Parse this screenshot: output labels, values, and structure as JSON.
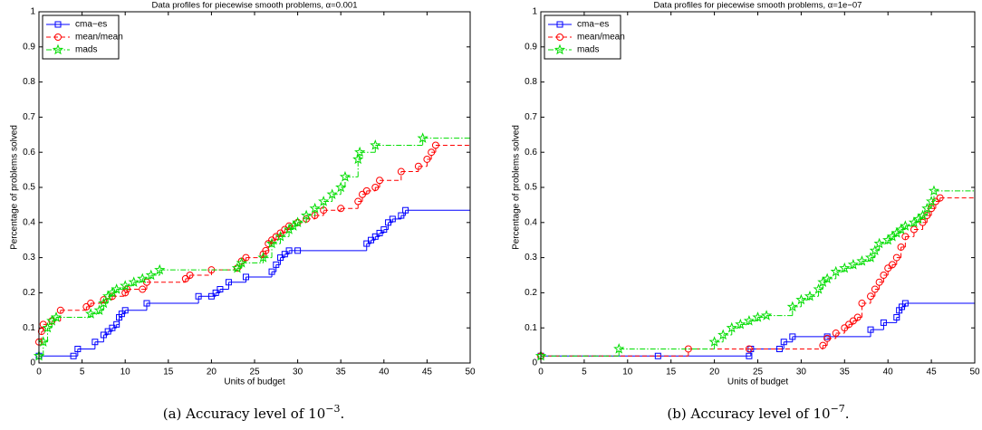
{
  "chart_data": [
    {
      "type": "step",
      "title": "Data profiles for piecewise smooth problems, α=0.001",
      "xlabel": "Units of budget",
      "ylabel": "Percentage of problems solved",
      "caption": {
        "prefix": "(a) Accuracy level of 10",
        "exponent": "−3",
        "suffix": "."
      },
      "xlim": [
        0,
        50
      ],
      "ylim": [
        0,
        1
      ],
      "xticks": [
        0,
        5,
        10,
        15,
        20,
        25,
        30,
        35,
        40,
        45,
        50
      ],
      "yticks": [
        0,
        0.1,
        0.2,
        0.3,
        0.4,
        0.5,
        0.6,
        0.7,
        0.8,
        0.9,
        1
      ],
      "legend": "upper left",
      "series": [
        {
          "name": "cma−es",
          "color": "#0000ff",
          "marker": "square",
          "linestyle": "solid",
          "x": [
            0,
            4,
            4.5,
            6.5,
            7.5,
            8,
            8.5,
            9,
            9.3,
            9.6,
            10,
            12.5,
            18.5,
            20,
            20.5,
            21,
            22,
            24,
            27,
            27.5,
            28,
            28.5,
            29,
            30,
            38,
            38.5,
            39,
            39.5,
            40,
            40.5,
            41,
            42,
            42.5
          ],
          "values": [
            0.02,
            0.02,
            0.04,
            0.06,
            0.08,
            0.09,
            0.1,
            0.11,
            0.13,
            0.14,
            0.15,
            0.17,
            0.19,
            0.19,
            0.2,
            0.21,
            0.23,
            0.245,
            0.26,
            0.28,
            0.3,
            0.31,
            0.32,
            0.32,
            0.34,
            0.35,
            0.36,
            0.37,
            0.38,
            0.4,
            0.41,
            0.42,
            0.435
          ]
        },
        {
          "name": "mean/mean",
          "color": "#ff0000",
          "marker": "circle",
          "linestyle": "dashed",
          "x": [
            0,
            0.3,
            0.5,
            1.5,
            2.5,
            5.5,
            6,
            7.5,
            8.5,
            10,
            10.2,
            12,
            12.5,
            17,
            17.5,
            20,
            23,
            23.5,
            24,
            26,
            26.3,
            26.6,
            27,
            27.5,
            28,
            28.5,
            29,
            30,
            31,
            32,
            33,
            35,
            37,
            37.5,
            38,
            39,
            39.5,
            42,
            44,
            45,
            45.5,
            46
          ],
          "values": [
            0.06,
            0.09,
            0.11,
            0.12,
            0.15,
            0.16,
            0.17,
            0.18,
            0.19,
            0.2,
            0.21,
            0.21,
            0.23,
            0.24,
            0.25,
            0.265,
            0.27,
            0.29,
            0.3,
            0.31,
            0.32,
            0.34,
            0.35,
            0.36,
            0.37,
            0.38,
            0.39,
            0.4,
            0.41,
            0.42,
            0.435,
            0.44,
            0.46,
            0.48,
            0.49,
            0.5,
            0.52,
            0.545,
            0.56,
            0.58,
            0.6,
            0.62
          ]
        },
        {
          "name": "mads",
          "color": "#00dd00",
          "marker": "star",
          "linestyle": "dashdot",
          "x": [
            0,
            0.5,
            1,
            1.5,
            2,
            6,
            7,
            7.5,
            8,
            8.5,
            9,
            10,
            11,
            12,
            13,
            14,
            23,
            23.5,
            26,
            27,
            28,
            29,
            29.5,
            30,
            31,
            32,
            33,
            34,
            35,
            35.5,
            37,
            37.2,
            39,
            44.5
          ],
          "values": [
            0.02,
            0.06,
            0.1,
            0.12,
            0.13,
            0.14,
            0.15,
            0.17,
            0.19,
            0.2,
            0.21,
            0.22,
            0.23,
            0.24,
            0.25,
            0.265,
            0.27,
            0.285,
            0.3,
            0.34,
            0.36,
            0.38,
            0.39,
            0.4,
            0.42,
            0.44,
            0.46,
            0.48,
            0.5,
            0.53,
            0.58,
            0.6,
            0.62,
            0.64
          ]
        }
      ]
    },
    {
      "type": "step",
      "title": "Data profiles for piecewise smooth problems, α=1e−07",
      "xlabel": "Units of budget",
      "ylabel": "Percentage of problems solved",
      "caption": {
        "prefix": "(b) Accuracy level of 10",
        "exponent": "−7",
        "suffix": "."
      },
      "xlim": [
        0,
        50
      ],
      "ylim": [
        0,
        1
      ],
      "xticks": [
        0,
        5,
        10,
        15,
        20,
        25,
        30,
        35,
        40,
        45,
        50
      ],
      "yticks": [
        0,
        0.1,
        0.2,
        0.3,
        0.4,
        0.5,
        0.6,
        0.7,
        0.8,
        0.9,
        1
      ],
      "legend": "upper left",
      "series": [
        {
          "name": "cma−es",
          "color": "#0000ff",
          "marker": "square",
          "linestyle": "solid",
          "x": [
            0,
            13.5,
            24,
            24.2,
            27.5,
            28,
            29,
            33,
            38,
            39.5,
            41,
            41.3,
            41.6,
            42
          ],
          "values": [
            0.02,
            0.02,
            0.02,
            0.04,
            0.04,
            0.06,
            0.075,
            0.075,
            0.095,
            0.115,
            0.13,
            0.15,
            0.16,
            0.17
          ]
        },
        {
          "name": "mean/mean",
          "color": "#ff0000",
          "marker": "circle",
          "linestyle": "dashed",
          "x": [
            0,
            17,
            24,
            32.5,
            33,
            34,
            35,
            35.5,
            36,
            36.5,
            37,
            38,
            38.5,
            39,
            39.5,
            40,
            40.5,
            41,
            41.5,
            42,
            43,
            44,
            44.5,
            45,
            45.5,
            46
          ],
          "values": [
            0.02,
            0.04,
            0.04,
            0.05,
            0.07,
            0.085,
            0.1,
            0.11,
            0.12,
            0.13,
            0.17,
            0.19,
            0.21,
            0.23,
            0.25,
            0.27,
            0.28,
            0.3,
            0.33,
            0.36,
            0.38,
            0.4,
            0.42,
            0.44,
            0.46,
            0.47
          ]
        },
        {
          "name": "mads",
          "color": "#00dd00",
          "marker": "star",
          "linestyle": "dashdot",
          "x": [
            0,
            9,
            20,
            21,
            22,
            23,
            24,
            25,
            26,
            29,
            30,
            31,
            32,
            32.5,
            33,
            34,
            35,
            36,
            37,
            38,
            38.5,
            39,
            40,
            40.5,
            41,
            41.5,
            42,
            43,
            43.5,
            44,
            44.5,
            45,
            45.3
          ],
          "values": [
            0.02,
            0.04,
            0.06,
            0.08,
            0.1,
            0.11,
            0.12,
            0.13,
            0.135,
            0.16,
            0.18,
            0.19,
            0.21,
            0.23,
            0.24,
            0.26,
            0.27,
            0.28,
            0.29,
            0.3,
            0.32,
            0.34,
            0.35,
            0.36,
            0.37,
            0.38,
            0.39,
            0.4,
            0.41,
            0.42,
            0.44,
            0.46,
            0.49
          ]
        }
      ]
    }
  ]
}
